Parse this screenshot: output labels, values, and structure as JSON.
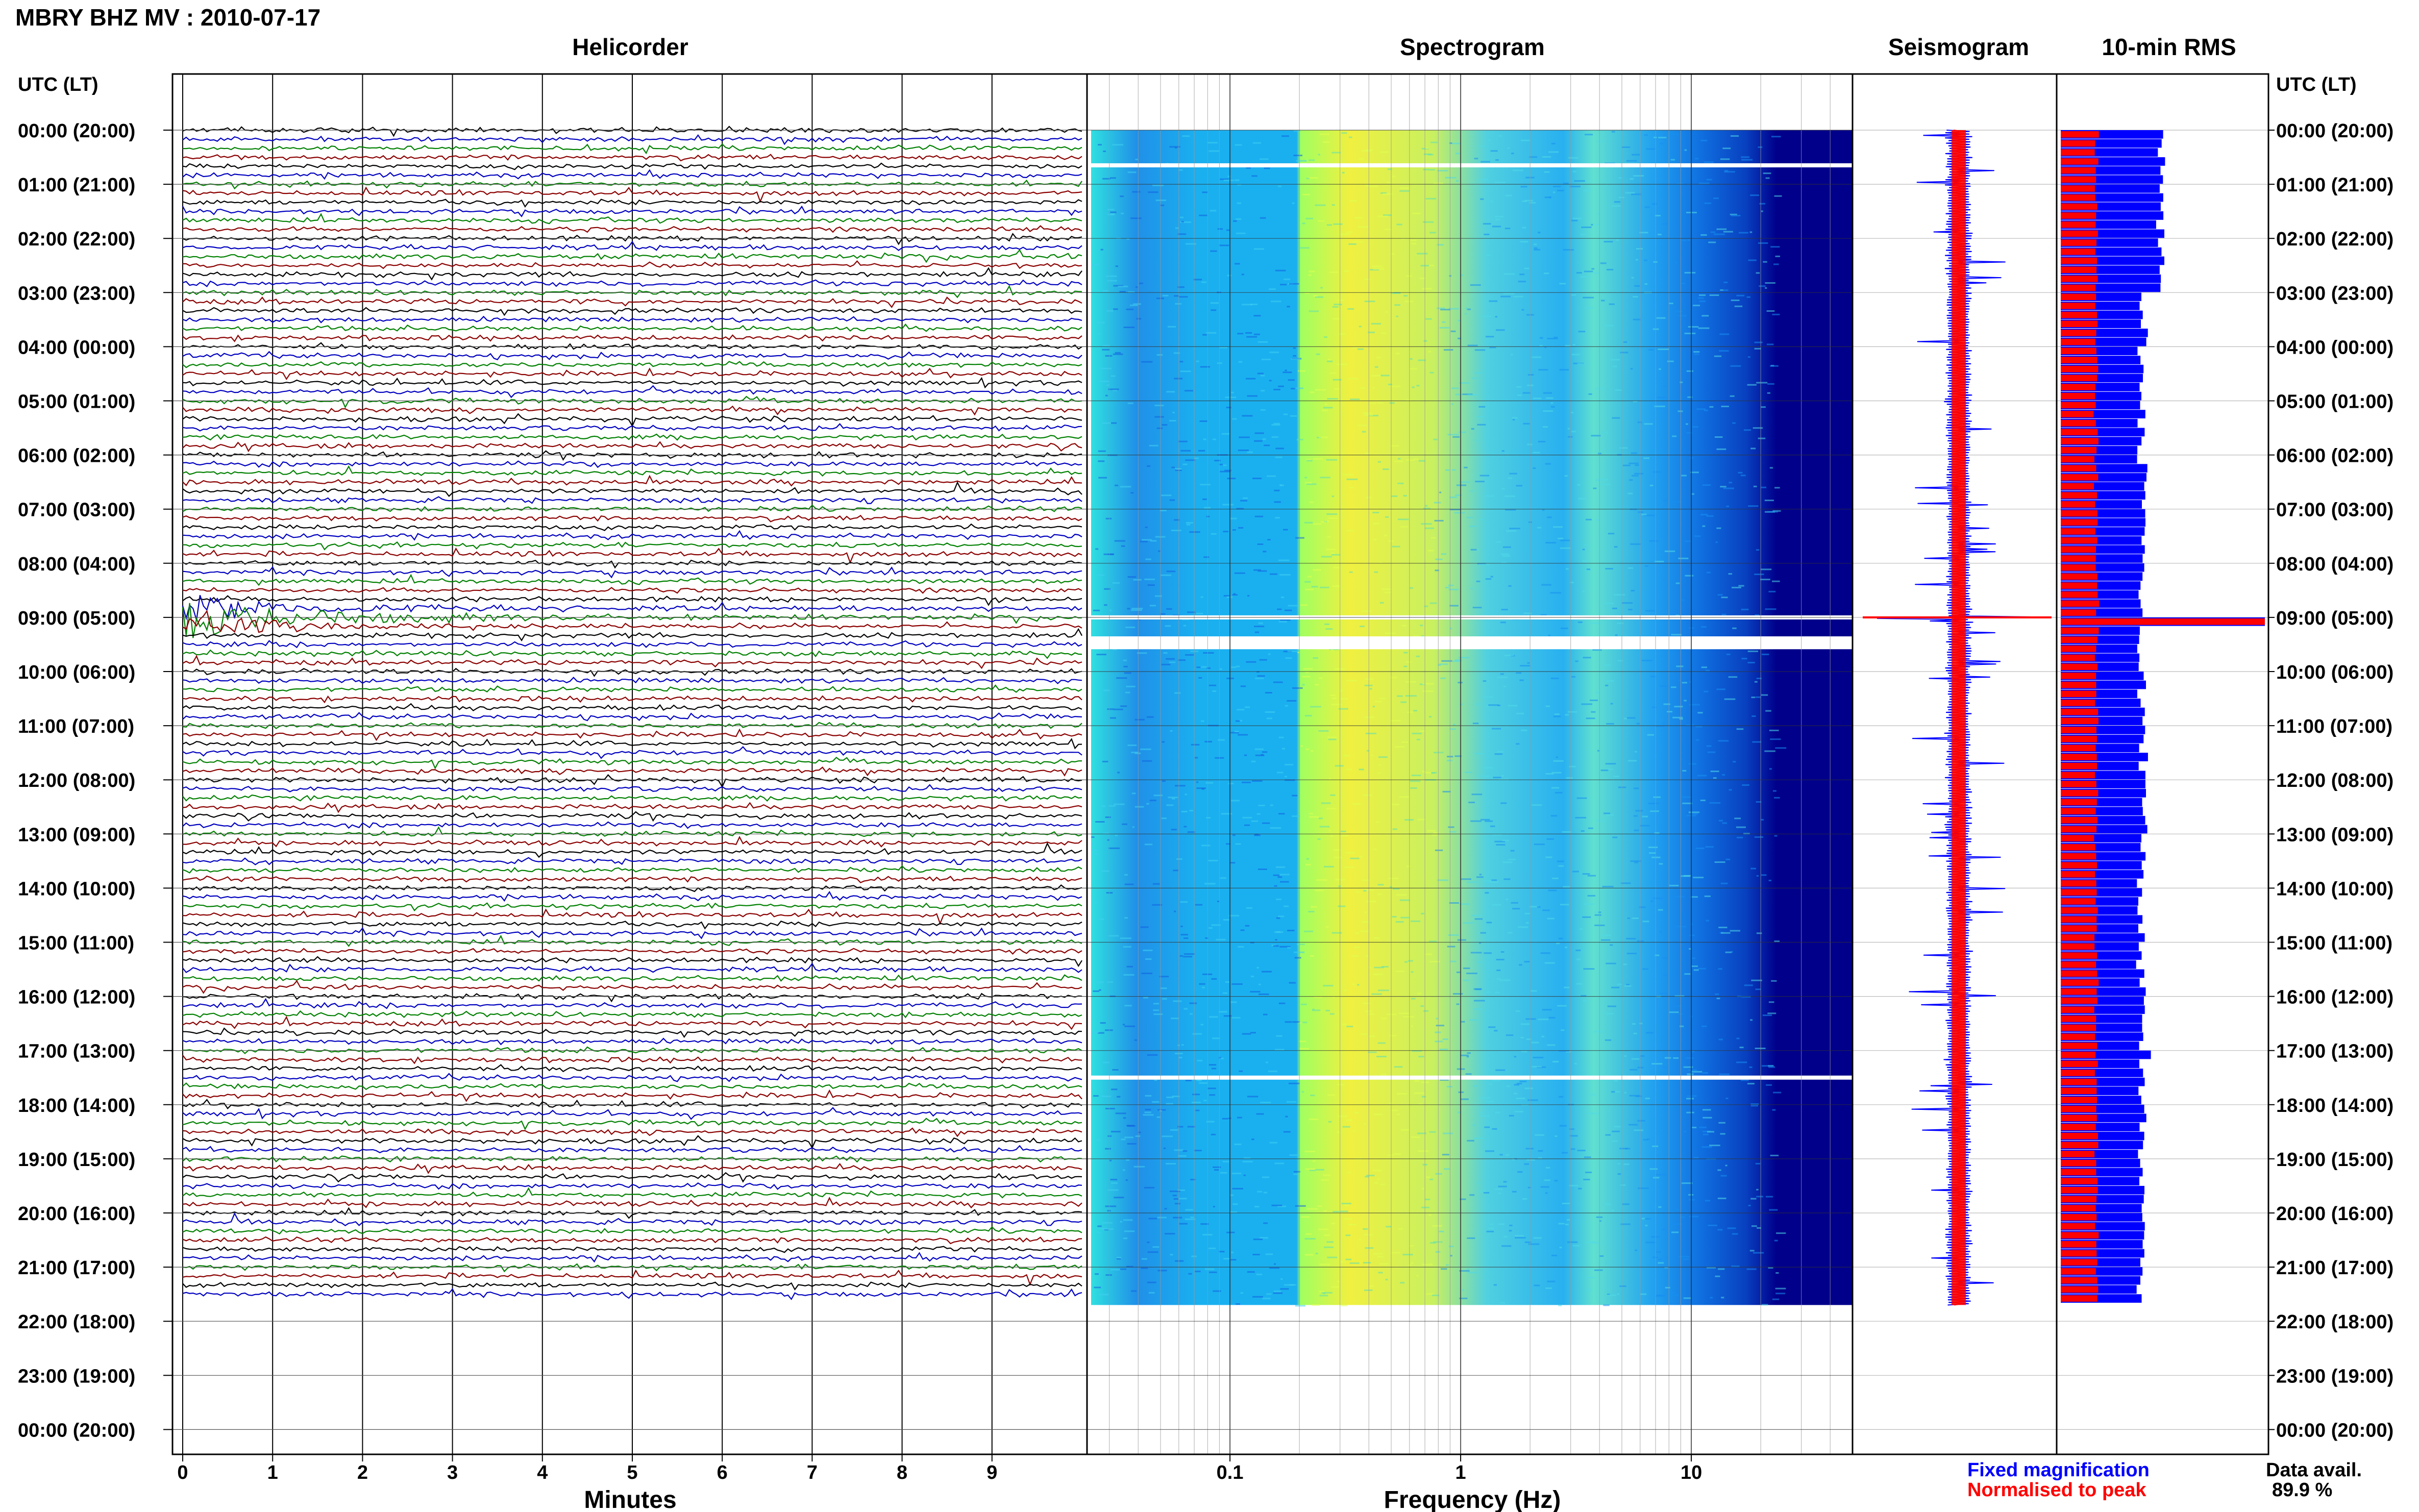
{
  "title": "MBRY BHZ MV : 2010-07-17",
  "panels": {
    "helicorder": "Helicorder",
    "spectrogram": "Spectrogram",
    "seismogram": "Seismogram",
    "rms": "10-min RMS"
  },
  "time_axis_label": "UTC (LT)",
  "time_labels": [
    "00:00 (20:00)",
    "01:00 (21:00)",
    "02:00 (22:00)",
    "03:00 (23:00)",
    "04:00 (00:00)",
    "05:00 (01:00)",
    "06:00 (02:00)",
    "07:00 (03:00)",
    "08:00 (04:00)",
    "09:00 (05:00)",
    "10:00 (06:00)",
    "11:00 (07:00)",
    "12:00 (08:00)",
    "13:00 (09:00)",
    "14:00 (10:00)",
    "15:00 (11:00)",
    "16:00 (12:00)",
    "17:00 (13:00)",
    "18:00 (14:00)",
    "19:00 (15:00)",
    "20:00 (16:00)",
    "21:00 (17:00)",
    "22:00 (18:00)",
    "23:00 (19:00)",
    "00:00 (20:00)"
  ],
  "legend": {
    "fixed": "Fixed magnification",
    "normalised": "Normalised to peak",
    "data_avail_label": "Data avail.",
    "data_avail_value": "89.9 %"
  },
  "colors": {
    "trace_cycle": [
      "#000000",
      "#0000c0",
      "#008000",
      "#8b0000"
    ],
    "fixed": "#0000ff",
    "normalised": "#ff0000",
    "spectro_low": "#00008b",
    "spectro_high": "#ffff40"
  },
  "chart_data": [
    {
      "type": "line",
      "name": "helicorder",
      "title": "Helicorder",
      "xlabel": "Minutes",
      "x_ticks": [
        0,
        1,
        2,
        3,
        4,
        5,
        6,
        7,
        8,
        9
      ],
      "xlim": [
        0,
        10
      ],
      "ylim_hours": [
        0,
        24
      ],
      "lines_per_hour": 6,
      "data_end_hours": 21.7,
      "event_hour": 9.0
    },
    {
      "type": "heatmap",
      "name": "spectrogram",
      "title": "Spectrogram",
      "xlabel": "Frequency (Hz)",
      "x_scale": "log",
      "x_ticks": [
        "0.1",
        "1",
        "10"
      ],
      "xlim": [
        0.025,
        50
      ],
      "ylim_hours": [
        0,
        24
      ],
      "data_end_hours": 21.7,
      "gap_hours": [
        0.65,
        9.0,
        9.55,
        17.5
      ]
    },
    {
      "type": "line",
      "name": "seismogram",
      "title": "Seismogram",
      "series": [
        "Fixed magnification",
        "Normalised to peak"
      ],
      "ylim_hours": [
        0,
        24
      ],
      "data_end_hours": 21.7,
      "event_hour": 9.0
    },
    {
      "type": "bar",
      "name": "rms",
      "title": "10-min RMS",
      "series": [
        "Fixed magnification",
        "Normalised to peak"
      ],
      "ylim_hours": [
        0,
        24
      ],
      "data_end_hours": 21.7,
      "event_hour": 9.0,
      "data_available": "89.9 %"
    }
  ]
}
